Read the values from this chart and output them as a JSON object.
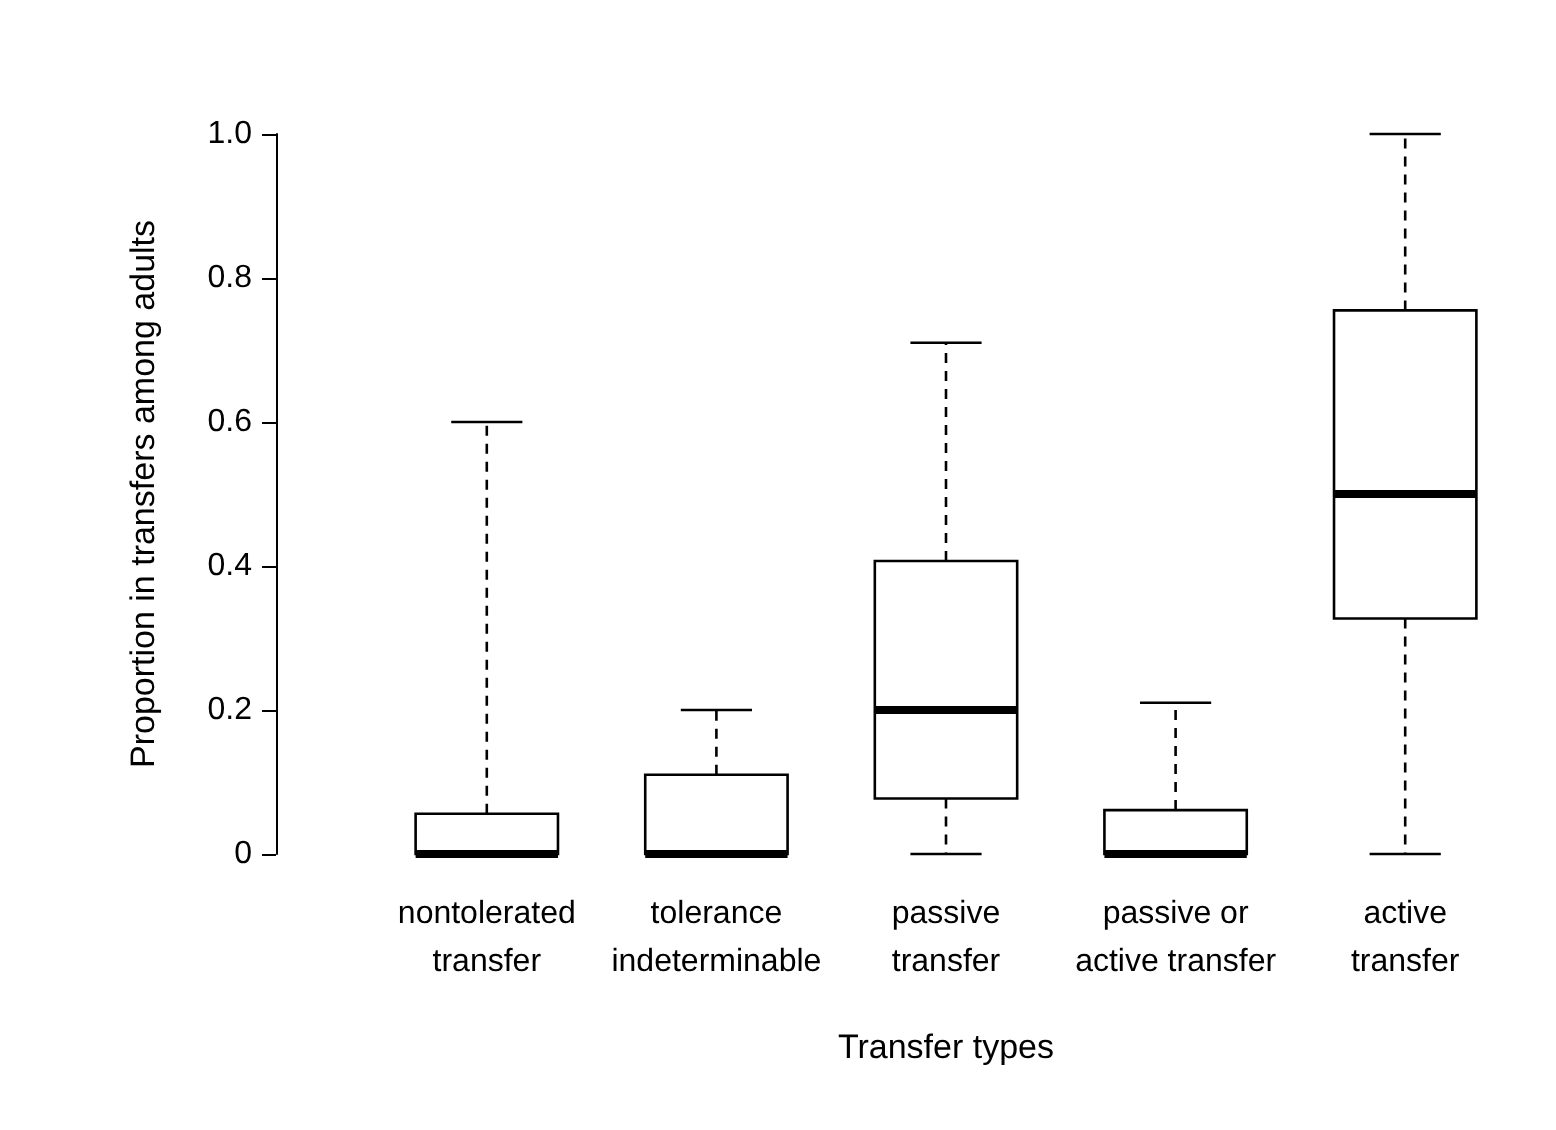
{
  "chart_data": {
    "type": "box",
    "xlabel": "Transfer types",
    "ylabel": "Proportion in transfers among adults",
    "categories": [
      "nontolerated\ntransfer",
      "tolerance\nindeterminable",
      "passive\ntransfer",
      "passive or\nactive transfer",
      "active\ntransfer"
    ],
    "boxes": [
      {
        "low": 0,
        "q1": 0,
        "median": 0,
        "q3": 0.056,
        "high": 0.6
      },
      {
        "low": 0,
        "q1": 0,
        "median": 0,
        "q3": 0.11,
        "high": 0.2
      },
      {
        "low": 0,
        "q1": 0.077,
        "median": 0.2,
        "q3": 0.407,
        "high": 0.71
      },
      {
        "low": 0,
        "q1": 0,
        "median": 0,
        "q3": 0.061,
        "high": 0.21
      },
      {
        "low": 0,
        "q1": 0.327,
        "median": 0.5,
        "q3": 0.755,
        "high": 1.0
      }
    ],
    "ylim": [
      0,
      1
    ],
    "yticks": [
      0,
      0.2,
      0.4,
      0.6,
      0.8,
      {
        "value": 1,
        "label": "1.0"
      }
    ]
  }
}
